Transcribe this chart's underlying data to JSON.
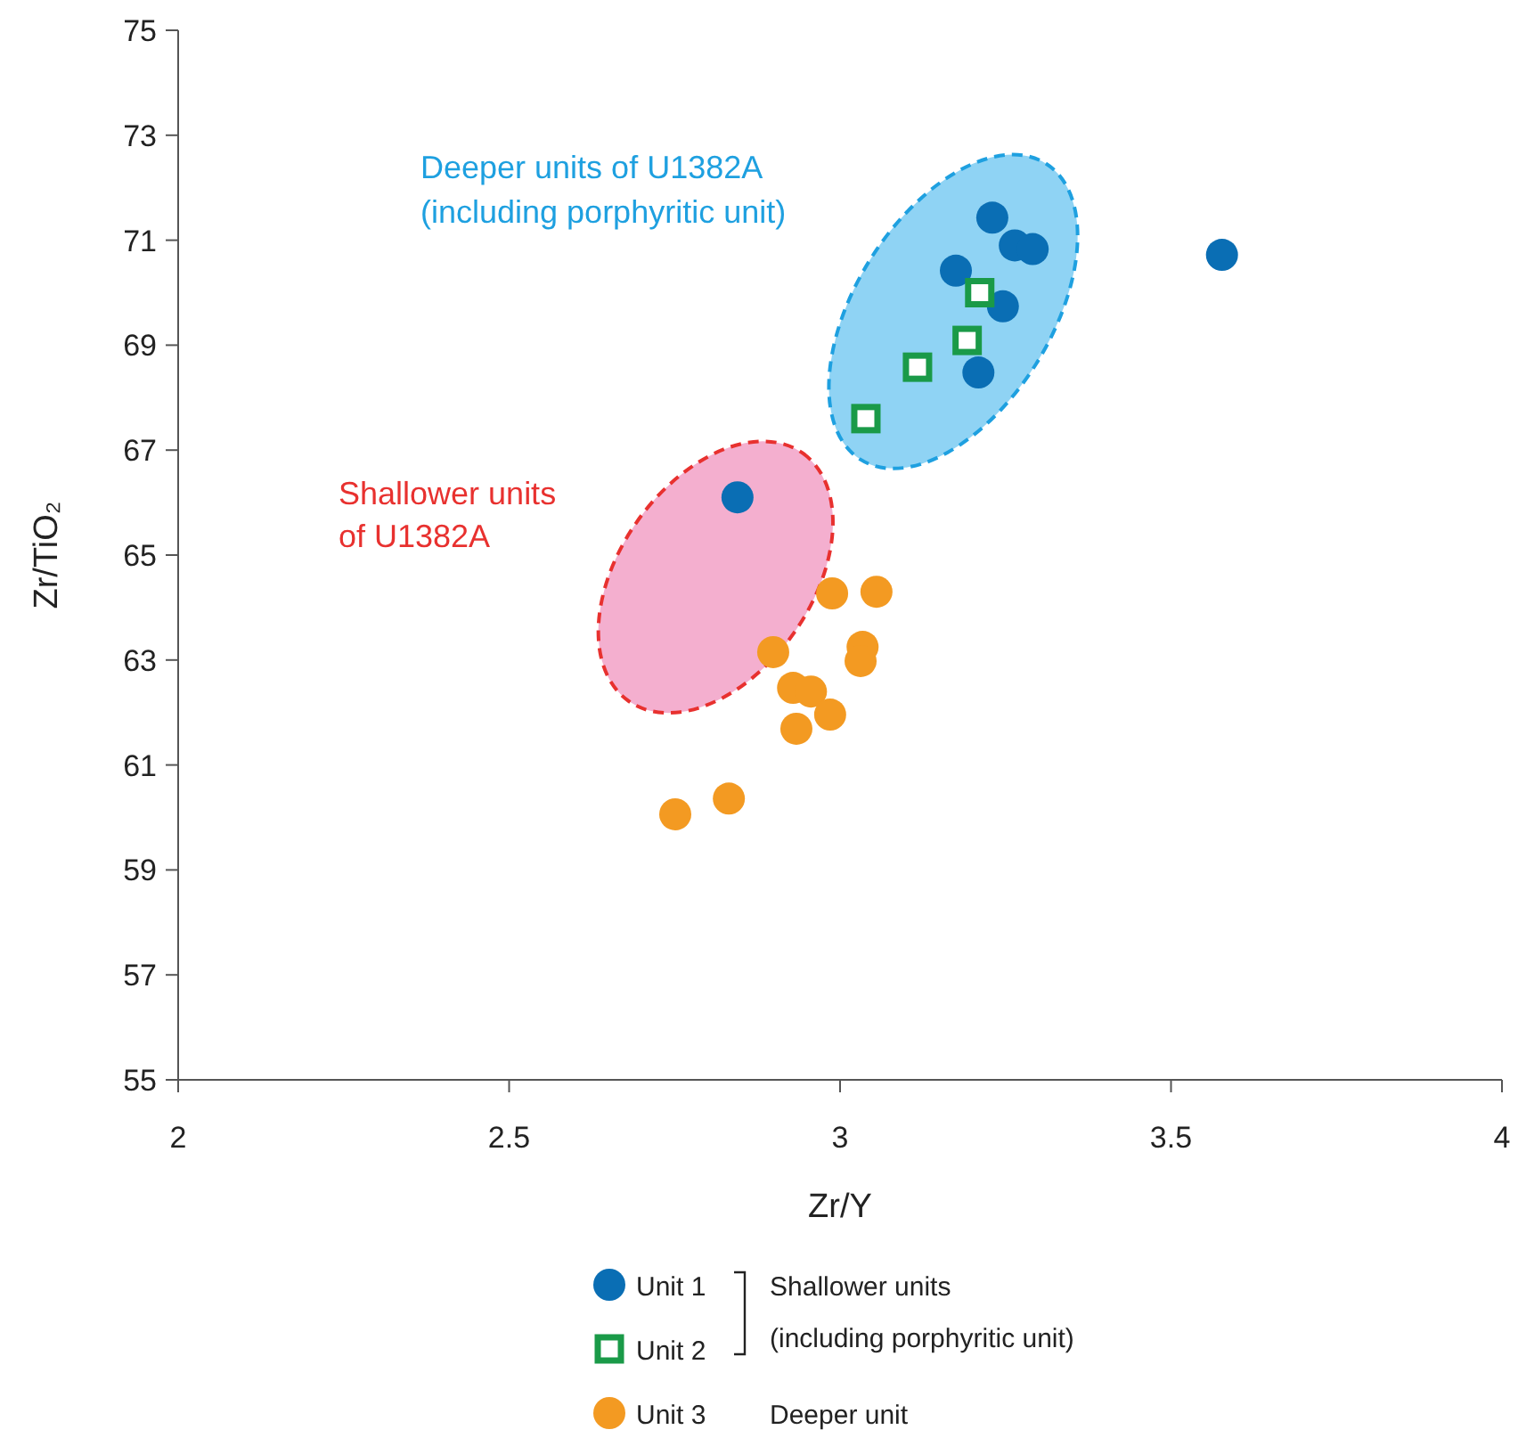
{
  "chart_data": {
    "type": "scatter",
    "xlabel": "Zr/Y",
    "ylabel": "Zr/TiO₂",
    "xlim": [
      2,
      4
    ],
    "xticks": [
      2,
      2.5,
      3,
      3.5,
      4
    ],
    "ylim": [
      55,
      75
    ],
    "yticks": [
      55,
      57,
      59,
      61,
      63,
      65,
      67,
      69,
      71,
      73,
      75
    ],
    "grid": false,
    "legend": "bottom",
    "series": [
      {
        "name": "Unit 1",
        "color": "#0a6eb4",
        "marker": "circle",
        "x": [
          3.23,
          3.175,
          3.264,
          3.291,
          3.246,
          3.209,
          3.577,
          2.845
        ],
        "values": [
          71.43,
          70.42,
          70.9,
          70.83,
          69.74,
          68.48,
          70.72,
          66.1
        ]
      },
      {
        "name": "Unit 2",
        "color": "#1a9a48",
        "marker": "square",
        "x": [
          3.211,
          3.192,
          3.117,
          3.039
        ],
        "values": [
          70.0,
          69.09,
          68.58,
          67.6
        ]
      },
      {
        "name": "Unit 3",
        "color": "#f39a22",
        "marker": "circle",
        "x": [
          2.988,
          3.055,
          2.899,
          3.034,
          3.031,
          2.929,
          2.956,
          2.985,
          2.934,
          2.751,
          2.832
        ],
        "values": [
          64.27,
          64.3,
          63.15,
          63.25,
          62.98,
          62.47,
          62.4,
          61.96,
          61.69,
          60.06,
          60.36
        ]
      }
    ],
    "annotations": [
      "Deeper units of U1382A",
      "(including porphyritic unit)",
      "Shallower units",
      "of U1382A",
      "Shallower units",
      "(including porphyritic unit)",
      "Deeper unit"
    ]
  }
}
